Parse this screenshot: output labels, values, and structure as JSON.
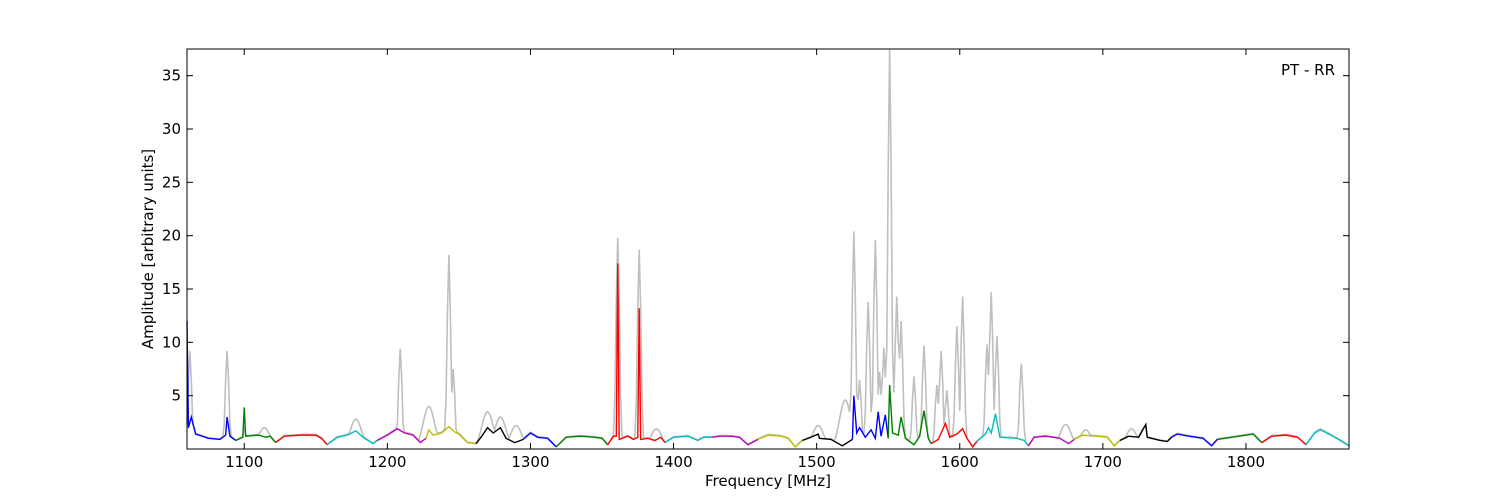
{
  "chart_data": {
    "type": "line",
    "title": "",
    "annotation": "PT - RR",
    "xlabel": "Frequency [MHz]",
    "ylabel": "Amplitude [arbitrary units]",
    "xlim": [
      1060,
      1872
    ],
    "ylim": [
      0,
      37.5
    ],
    "xticks": [
      1100,
      1200,
      1300,
      1400,
      1500,
      1600,
      1700,
      1800
    ],
    "yticks": [
      5,
      10,
      15,
      20,
      25,
      30,
      35
    ],
    "grid": false,
    "legend": "none",
    "reference_color": "#bfbfbf",
    "reference_peaks": [
      {
        "x": 1062,
        "y": 9.2
      },
      {
        "x": 1088,
        "y": 9.2
      },
      {
        "x": 1114,
        "y": 2.0
      },
      {
        "x": 1178,
        "y": 2.8
      },
      {
        "x": 1209,
        "y": 9.4
      },
      {
        "x": 1229,
        "y": 4.0
      },
      {
        "x": 1243,
        "y": 18.2
      },
      {
        "x": 1246,
        "y": 7.5
      },
      {
        "x": 1270,
        "y": 3.5
      },
      {
        "x": 1279,
        "y": 3.0
      },
      {
        "x": 1290,
        "y": 2.2
      },
      {
        "x": 1361,
        "y": 19.8
      },
      {
        "x": 1376,
        "y": 18.7
      },
      {
        "x": 1388,
        "y": 1.9
      },
      {
        "x": 1501,
        "y": 2.2
      },
      {
        "x": 1520,
        "y": 4.6
      },
      {
        "x": 1526,
        "y": 20.4
      },
      {
        "x": 1530,
        "y": 6.5
      },
      {
        "x": 1536,
        "y": 13.8
      },
      {
        "x": 1541,
        "y": 19.6
      },
      {
        "x": 1544,
        "y": 7.2
      },
      {
        "x": 1547,
        "y": 9.5
      },
      {
        "x": 1551,
        "y": 37.5
      },
      {
        "x": 1553,
        "y": 7.5
      },
      {
        "x": 1556,
        "y": 14.3
      },
      {
        "x": 1559,
        "y": 12.0
      },
      {
        "x": 1568,
        "y": 6.8
      },
      {
        "x": 1575,
        "y": 9.7
      },
      {
        "x": 1584,
        "y": 6.0
      },
      {
        "x": 1587,
        "y": 9.2
      },
      {
        "x": 1591,
        "y": 5.5
      },
      {
        "x": 1598,
        "y": 11.5
      },
      {
        "x": 1602,
        "y": 14.3
      },
      {
        "x": 1619,
        "y": 9.8
      },
      {
        "x": 1622,
        "y": 14.7
      },
      {
        "x": 1626,
        "y": 10.6
      },
      {
        "x": 1643,
        "y": 8.0
      },
      {
        "x": 1674,
        "y": 2.3
      },
      {
        "x": 1688,
        "y": 1.8
      },
      {
        "x": 1720,
        "y": 1.9
      },
      {
        "x": 1854,
        "y": 1.6
      }
    ],
    "series": [
      {
        "color": "#0000ff",
        "x_range": [
          1060,
          1094
        ],
        "points": [
          [
            1060,
            12.0
          ],
          [
            1061,
            2.0
          ],
          [
            1063,
            3.0
          ],
          [
            1066,
            1.4
          ],
          [
            1075,
            1.0
          ],
          [
            1083,
            0.9
          ],
          [
            1087,
            1.3
          ],
          [
            1088,
            3.0
          ],
          [
            1090,
            1.2
          ],
          [
            1094,
            0.8
          ]
        ]
      },
      {
        "color": "#008000",
        "x_range": [
          1094,
          1122
        ],
        "points": [
          [
            1094,
            0.8
          ],
          [
            1099,
            1.1
          ],
          [
            1100,
            3.9
          ],
          [
            1101,
            1.2
          ],
          [
            1110,
            1.3
          ],
          [
            1115,
            1.1
          ],
          [
            1118,
            1.2
          ],
          [
            1122,
            0.6
          ]
        ]
      },
      {
        "color": "#ff0000",
        "x_range": [
          1122,
          1158
        ],
        "points": [
          [
            1122,
            0.6
          ],
          [
            1128,
            1.2
          ],
          [
            1140,
            1.3
          ],
          [
            1150,
            1.3
          ],
          [
            1154,
            1.0
          ],
          [
            1158,
            0.4
          ]
        ]
      },
      {
        "color": "#00bfbf",
        "x_range": [
          1158,
          1193
        ],
        "points": [
          [
            1158,
            0.4
          ],
          [
            1165,
            1.1
          ],
          [
            1172,
            1.3
          ],
          [
            1178,
            1.7
          ],
          [
            1183,
            1.1
          ],
          [
            1190,
            0.5
          ],
          [
            1193,
            0.8
          ]
        ]
      },
      {
        "color": "#bf00bf",
        "x_range": [
          1193,
          1227
        ],
        "points": [
          [
            1193,
            0.8
          ],
          [
            1200,
            1.3
          ],
          [
            1207,
            1.9
          ],
          [
            1212,
            1.5
          ],
          [
            1218,
            1.3
          ],
          [
            1223,
            0.6
          ],
          [
            1227,
            1.0
          ]
        ]
      },
      {
        "color": "#bfbf00",
        "x_range": [
          1227,
          1262
        ],
        "points": [
          [
            1227,
            1.0
          ],
          [
            1229,
            1.8
          ],
          [
            1232,
            1.3
          ],
          [
            1238,
            1.5
          ],
          [
            1243,
            2.1
          ],
          [
            1247,
            1.6
          ],
          [
            1250,
            1.4
          ],
          [
            1256,
            0.6
          ],
          [
            1262,
            0.5
          ]
        ]
      },
      {
        "color": "#000000",
        "x_range": [
          1262,
          1295
        ],
        "points": [
          [
            1262,
            0.5
          ],
          [
            1266,
            1.2
          ],
          [
            1270,
            2.0
          ],
          [
            1274,
            1.5
          ],
          [
            1279,
            2.0
          ],
          [
            1283,
            1.0
          ],
          [
            1289,
            0.6
          ],
          [
            1295,
            0.9
          ]
        ]
      },
      {
        "color": "#0000ff",
        "x_range": [
          1295,
          1318
        ],
        "points": [
          [
            1295,
            0.9
          ],
          [
            1300,
            1.5
          ],
          [
            1305,
            1.1
          ],
          [
            1312,
            1.0
          ],
          [
            1318,
            0.2
          ]
        ]
      },
      {
        "color": "#008000",
        "x_range": [
          1318,
          1354
        ],
        "points": [
          [
            1318,
            0.2
          ],
          [
            1325,
            1.1
          ],
          [
            1335,
            1.2
          ],
          [
            1345,
            1.1
          ],
          [
            1350,
            1.0
          ],
          [
            1354,
            0.4
          ]
        ]
      },
      {
        "color": "#ff0000",
        "x_range": [
          1354,
          1394
        ],
        "points": [
          [
            1354,
            0.4
          ],
          [
            1358,
            1.2
          ],
          [
            1360,
            1.2
          ],
          [
            1361,
            17.4
          ],
          [
            1362,
            0.9
          ],
          [
            1368,
            1.2
          ],
          [
            1372,
            0.9
          ],
          [
            1375,
            1.1
          ],
          [
            1376,
            13.2
          ],
          [
            1377,
            0.9
          ],
          [
            1382,
            1.0
          ],
          [
            1387,
            0.8
          ],
          [
            1391,
            1.1
          ],
          [
            1394,
            0.6
          ]
        ]
      },
      {
        "color": "#00bfbf",
        "x_range": [
          1394,
          1427
        ],
        "points": [
          [
            1394,
            0.6
          ],
          [
            1400,
            1.1
          ],
          [
            1410,
            1.2
          ],
          [
            1417,
            0.8
          ],
          [
            1421,
            1.1
          ],
          [
            1427,
            1.1
          ]
        ]
      },
      {
        "color": "#bf00bf",
        "x_range": [
          1427,
          1459
        ],
        "points": [
          [
            1427,
            1.1
          ],
          [
            1432,
            1.2
          ],
          [
            1440,
            1.2
          ],
          [
            1446,
            1.1
          ],
          [
            1452,
            0.4
          ],
          [
            1459,
            0.9
          ]
        ]
      },
      {
        "color": "#bfbf00",
        "x_range": [
          1459,
          1490
        ],
        "points": [
          [
            1459,
            0.9
          ],
          [
            1466,
            1.3
          ],
          [
            1475,
            1.2
          ],
          [
            1480,
            1.0
          ],
          [
            1485,
            0.2
          ],
          [
            1490,
            0.8
          ]
        ]
      },
      {
        "color": "#000000",
        "x_range": [
          1490,
          1525
        ],
        "points": [
          [
            1490,
            0.8
          ],
          [
            1496,
            1.1
          ],
          [
            1501,
            1.4
          ],
          [
            1502,
            1.0
          ],
          [
            1510,
            0.9
          ],
          [
            1518,
            0.3
          ],
          [
            1525,
            0.9
          ]
        ]
      },
      {
        "color": "#0000ff",
        "x_range": [
          1525,
          1550
        ],
        "points": [
          [
            1525,
            0.9
          ],
          [
            1526,
            5.0
          ],
          [
            1528,
            1.5
          ],
          [
            1530,
            2.0
          ],
          [
            1534,
            1.1
          ],
          [
            1538,
            1.8
          ],
          [
            1541,
            1.0
          ],
          [
            1543,
            3.5
          ],
          [
            1545,
            1.2
          ],
          [
            1548,
            3.2
          ],
          [
            1550,
            1.0
          ]
        ]
      },
      {
        "color": "#008000",
        "x_range": [
          1550,
          1580
        ],
        "points": [
          [
            1550,
            1.0
          ],
          [
            1551,
            6.0
          ],
          [
            1553,
            1.5
          ],
          [
            1557,
            1.3
          ],
          [
            1559,
            3.0
          ],
          [
            1562,
            1.0
          ],
          [
            1568,
            0.4
          ],
          [
            1572,
            1.2
          ],
          [
            1575,
            3.6
          ],
          [
            1578,
            1.0
          ],
          [
            1580,
            0.5
          ]
        ]
      },
      {
        "color": "#ff0000",
        "x_range": [
          1580,
          1612
        ],
        "points": [
          [
            1580,
            0.5
          ],
          [
            1585,
            0.9
          ],
          [
            1590,
            2.4
          ],
          [
            1593,
            1.1
          ],
          [
            1598,
            1.4
          ],
          [
            1602,
            1.9
          ],
          [
            1605,
            1.0
          ],
          [
            1609,
            0.2
          ],
          [
            1612,
            0.7
          ]
        ]
      },
      {
        "color": "#00bfbf",
        "x_range": [
          1612,
          1648
        ],
        "points": [
          [
            1612,
            0.7
          ],
          [
            1618,
            1.4
          ],
          [
            1620,
            2.0
          ],
          [
            1622,
            1.5
          ],
          [
            1625,
            3.3
          ],
          [
            1628,
            1.1
          ],
          [
            1640,
            1.0
          ],
          [
            1645,
            0.8
          ],
          [
            1648,
            0.3
          ]
        ]
      },
      {
        "color": "#bf00bf",
        "x_range": [
          1648,
          1680
        ],
        "points": [
          [
            1648,
            0.3
          ],
          [
            1652,
            1.1
          ],
          [
            1660,
            1.2
          ],
          [
            1670,
            1.0
          ],
          [
            1676,
            0.5
          ],
          [
            1680,
            0.9
          ]
        ]
      },
      {
        "color": "#bfbf00",
        "x_range": [
          1680,
          1712
        ],
        "points": [
          [
            1680,
            0.9
          ],
          [
            1686,
            1.3
          ],
          [
            1695,
            1.2
          ],
          [
            1703,
            1.1
          ],
          [
            1708,
            0.3
          ],
          [
            1712,
            0.8
          ]
        ]
      },
      {
        "color": "#000000",
        "x_range": [
          1712,
          1748
        ],
        "points": [
          [
            1712,
            0.8
          ],
          [
            1718,
            1.2
          ],
          [
            1725,
            1.1
          ],
          [
            1730,
            2.3
          ],
          [
            1731,
            1.1
          ],
          [
            1740,
            0.8
          ],
          [
            1745,
            0.7
          ],
          [
            1748,
            1.1
          ]
        ]
      },
      {
        "color": "#0000ff",
        "x_range": [
          1748,
          1780
        ],
        "points": [
          [
            1748,
            1.1
          ],
          [
            1752,
            1.4
          ],
          [
            1760,
            1.2
          ],
          [
            1770,
            1.0
          ],
          [
            1776,
            0.3
          ],
          [
            1780,
            0.9
          ]
        ]
      },
      {
        "color": "#008000",
        "x_range": [
          1780,
          1811
        ],
        "points": [
          [
            1780,
            0.9
          ],
          [
            1790,
            1.1
          ],
          [
            1800,
            1.3
          ],
          [
            1805,
            1.4
          ],
          [
            1811,
            0.6
          ]
        ]
      },
      {
        "color": "#ff0000",
        "x_range": [
          1811,
          1842
        ],
        "points": [
          [
            1811,
            0.6
          ],
          [
            1818,
            1.2
          ],
          [
            1828,
            1.3
          ],
          [
            1836,
            1.1
          ],
          [
            1842,
            0.4
          ]
        ]
      },
      {
        "color": "#00bfbf",
        "x_range": [
          1842,
          1872
        ],
        "points": [
          [
            1842,
            0.4
          ],
          [
            1848,
            1.5
          ],
          [
            1852,
            1.8
          ],
          [
            1858,
            1.4
          ],
          [
            1866,
            0.8
          ],
          [
            1872,
            0.3
          ]
        ]
      }
    ]
  }
}
